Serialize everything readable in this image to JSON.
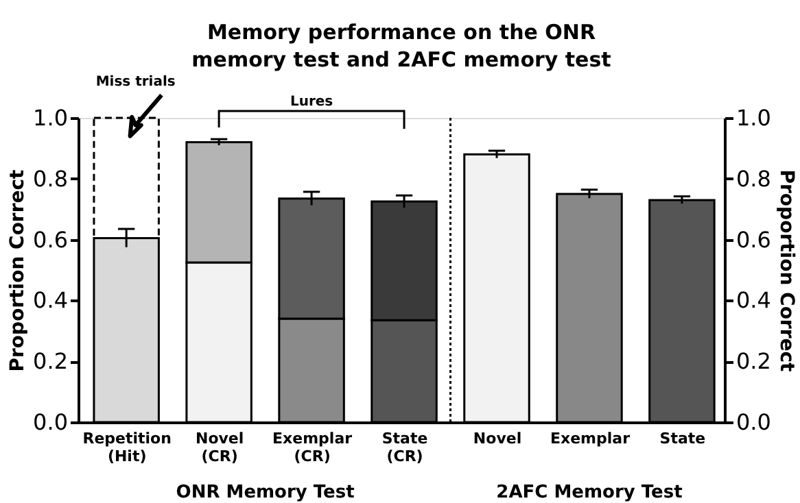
{
  "chart_data": {
    "type": "bar",
    "title": "Memory performance on the ONR memory test and 2AFC memory test",
    "categories": [
      "Repetition (Hit)",
      "Novel (CR)",
      "Exemplar (CR)",
      "State (CR)",
      "Novel",
      "Exemplar",
      "State"
    ],
    "stacked": true,
    "series": [
      {
        "colors": [
          "#d9d9d9",
          "#f2f2f2",
          "#8a8a8a",
          "#555555",
          "#f2f2f2",
          "#888888",
          "#555555"
        ],
        "values": [
          0.605,
          0.525,
          0.34,
          0.335,
          0.88,
          0.75,
          0.73
        ],
        "errors": [
          0.03,
          null,
          null,
          null,
          0.012,
          0.014,
          0.012
        ]
      },
      {
        "colors": [
          null,
          "#b4b4b4",
          "#5c5c5c",
          "#3a3a3a",
          null,
          null,
          null
        ],
        "values": [
          null,
          0.395,
          0.395,
          0.39,
          null,
          null,
          null
        ],
        "errors": [
          null,
          0.01,
          0.022,
          0.02,
          null,
          null,
          null
        ]
      },
      {
        "color": "#000000",
        "line_style": "dashed",
        "values": [
          0.395,
          null,
          null,
          null,
          null,
          null,
          null
        ]
      }
    ],
    "ylabel": "Proportion Correct",
    "y2label": "Proportion Correct",
    "ylim": [
      0,
      1
    ],
    "yticks": [
      {
        "value": 0,
        "label": "0.0"
      },
      0.2,
      0.4,
      0.6,
      0.8,
      {
        "value": 1,
        "label": "1.0"
      }
    ],
    "y2lim": [
      0,
      1
    ],
    "y2ticks": [
      {
        "value": 0,
        "label": "0.0"
      },
      0.2,
      0.4,
      0.6,
      0.8,
      {
        "value": 1,
        "label": "1.0"
      }
    ],
    "annotations": [
      {
        "text": "Miss trials",
        "x": "Repetition (Hit)",
        "y": 1.0
      },
      "Lures",
      "ONR Memory Test",
      "2AFC Memory Test"
    ],
    "grid": false
  }
}
